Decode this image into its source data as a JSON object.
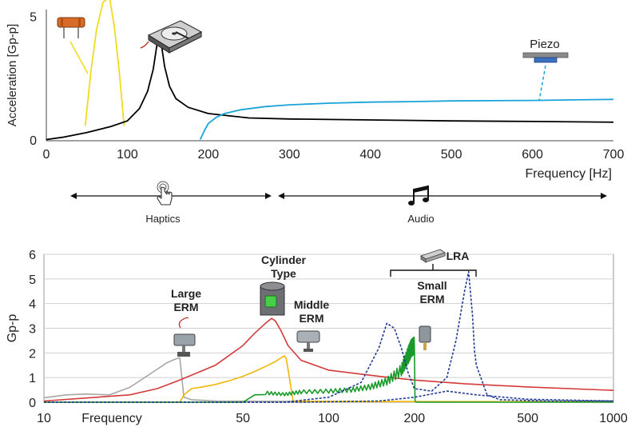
{
  "chart_data": [
    {
      "type": "line",
      "panel": "top",
      "ylabel": "Acceleration [Gp-p]",
      "xlabel": "Frequency [Hz]",
      "x_ticks": [
        0,
        100,
        200,
        300,
        400,
        500,
        600,
        700
      ],
      "y_ticks": [
        0,
        5
      ],
      "xlim": [
        0,
        700
      ],
      "ylim": [
        0,
        5.3
      ],
      "series": [
        {
          "color": "#f0dc1e",
          "x": [
            48,
            55,
            62,
            70,
            78,
            84,
            90,
            96
          ],
          "y": [
            0.6,
            2.8,
            4.5,
            5.6,
            5.8,
            4.6,
            2.8,
            0.6
          ]
        },
        {
          "color": "#000000",
          "x": [
            0,
            20,
            50,
            80,
            100,
            115,
            125,
            132,
            138,
            142,
            146,
            152,
            160,
            175,
            200,
            250,
            300,
            400,
            500,
            600,
            700
          ],
          "y": [
            0.05,
            0.14,
            0.33,
            0.58,
            0.8,
            1.3,
            2.0,
            2.9,
            4.2,
            3.9,
            3.0,
            2.2,
            1.7,
            1.35,
            1.1,
            0.92,
            0.88,
            0.84,
            0.8,
            0.78,
            0.75
          ]
        },
        {
          "color": "#1aa3d9",
          "x": [
            190,
            195,
            200,
            210,
            220,
            240,
            270,
            300,
            350,
            400,
            450,
            500,
            550,
            600,
            650,
            700
          ],
          "y": [
            0.05,
            0.4,
            0.7,
            0.95,
            1.1,
            1.25,
            1.38,
            1.45,
            1.52,
            1.56,
            1.58,
            1.61,
            1.62,
            1.63,
            1.65,
            1.67
          ]
        }
      ],
      "annotations": {
        "piezo": "Piezo"
      }
    },
    {
      "type": "line",
      "panel": "bottom",
      "ylabel": "Gp-p",
      "xlabel": "Frequency",
      "x_scale": "log",
      "x_ticks": [
        10,
        50,
        100,
        200,
        500,
        1000
      ],
      "y_ticks": [
        0,
        1,
        2,
        3,
        4,
        5,
        6
      ],
      "xlim": [
        10,
        1000
      ],
      "ylim": [
        0,
        6
      ],
      "series": [
        {
          "color": "#a6a6a6",
          "x": [
            10,
            12,
            14,
            17,
            20,
            24,
            27,
            29,
            30,
            31,
            33,
            40,
            60,
            100,
            300,
            1000
          ],
          "y": [
            0.18,
            0.3,
            0.33,
            0.3,
            0.6,
            1.2,
            1.6,
            1.75,
            1.8,
            0.2,
            0.1,
            0.05,
            0.04,
            0.03,
            0.02,
            0.02
          ]
        },
        {
          "color": "#f2b705",
          "x": [
            10,
            25,
            30,
            31,
            33,
            36,
            40,
            45,
            50,
            55,
            60,
            65,
            68,
            70,
            71,
            75,
            100,
            1000
          ],
          "y": [
            0,
            0,
            0,
            0.3,
            0.55,
            0.62,
            0.72,
            0.88,
            1.05,
            1.25,
            1.45,
            1.65,
            1.8,
            1.88,
            1.75,
            0.05,
            0.03,
            0.02
          ]
        },
        {
          "color": "#d43a3a",
          "x": [
            10,
            20,
            25,
            30,
            40,
            50,
            55,
            60,
            63,
            65,
            68,
            72,
            80,
            100,
            150,
            200,
            300,
            500,
            1000
          ],
          "y": [
            0.05,
            0.3,
            0.55,
            0.9,
            1.5,
            2.3,
            2.8,
            3.2,
            3.4,
            3.3,
            2.9,
            2.3,
            1.7,
            1.3,
            1.05,
            0.9,
            0.75,
            0.62,
            0.48
          ]
        },
        {
          "color": "#1a9a2a",
          "x": [
            10,
            50,
            55,
            60,
            70,
            80,
            100,
            120,
            140,
            160,
            180,
            190,
            195,
            200,
            201,
            203,
            1000
          ],
          "y": [
            0,
            0,
            0.3,
            0.38,
            0.32,
            0.42,
            0.45,
            0.5,
            0.62,
            0.85,
            1.3,
            1.9,
            2.2,
            2.3,
            0.05,
            0,
            0
          ],
          "zigzag": true
        },
        {
          "color": "#1f3a93",
          "dashed": true,
          "x": [
            10,
            70,
            100,
            130,
            150,
            160,
            170,
            180,
            190,
            200,
            230,
            260,
            280,
            300,
            310,
            320,
            325,
            330,
            360,
            400,
            600,
            1000
          ],
          "y": [
            0,
            0,
            0.2,
            0.8,
            2.2,
            3.2,
            3.0,
            2.2,
            1.2,
            0.55,
            0.45,
            1.0,
            2.5,
            4.5,
            5.3,
            3.5,
            2.1,
            1.5,
            0.3,
            0.1,
            0.05,
            0.05
          ]
        },
        {
          "color": "#1f3a93",
          "dashed": true,
          "x": [
            10,
            80,
            150,
            200,
            260,
            330,
            500,
            1000
          ],
          "y": [
            0,
            0,
            0.05,
            0.2,
            0.45,
            0.3,
            0.12,
            0.05
          ]
        }
      ],
      "annotations": {
        "large_erm": [
          "Large",
          "ERM"
        ],
        "cylinder": [
          "Cylinder",
          "Type"
        ],
        "middle_erm": [
          "Middle",
          "ERM"
        ],
        "small_erm": [
          "Small",
          "ERM"
        ],
        "lra": "LRA"
      }
    }
  ],
  "ranges": {
    "haptics": "Haptics",
    "audio": "Audio"
  },
  "icons": [
    "capacitor-icon",
    "hard-drive-icon",
    "piezo-icon",
    "touch-hand-icon",
    "music-notes-icon",
    "erm-motor-icon",
    "cylinder-motor-icon",
    "lra-icon"
  ]
}
